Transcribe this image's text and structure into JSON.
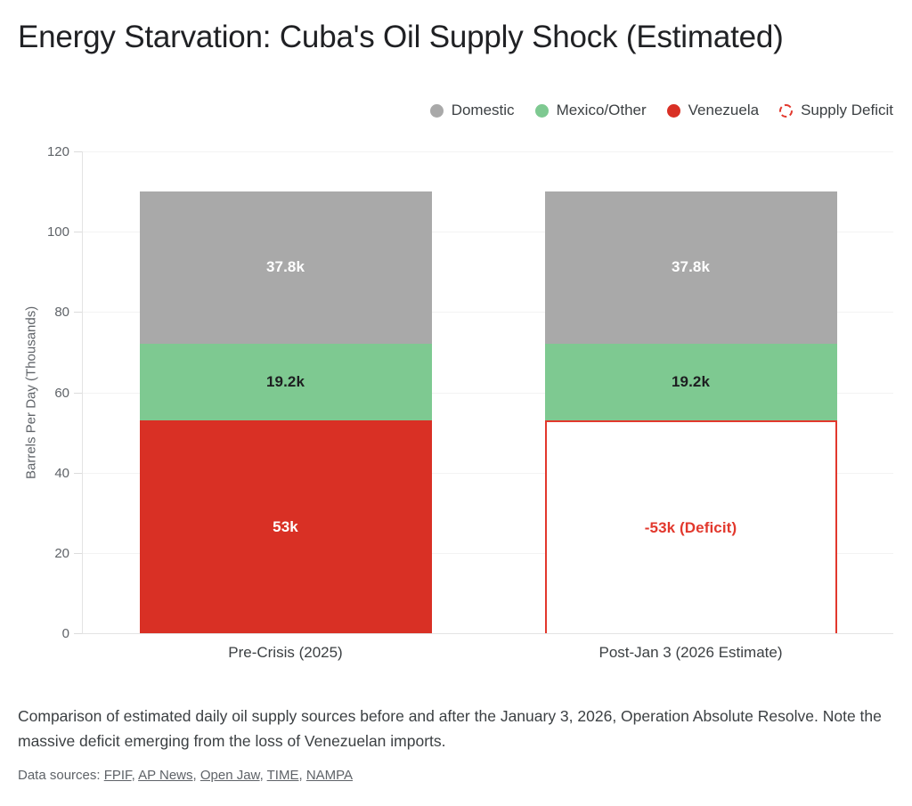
{
  "header": {
    "title": "Energy Starvation: Cuba's Oil Supply Shock (Estimated)"
  },
  "colors": {
    "domestic": "#a9a9a9",
    "mexico_other": "#7ec991",
    "venezuela": "#d93025",
    "deficit": "#e2382d",
    "grid": "#f3f3f3",
    "axis": "#e3e3e3"
  },
  "legend": {
    "items": [
      {
        "label": "Domestic",
        "color": "#a9a9a9",
        "marker": "circle"
      },
      {
        "label": "Mexico/Other",
        "color": "#7ec991",
        "marker": "circle"
      },
      {
        "label": "Venezuela",
        "color": "#d93025",
        "marker": "circle"
      },
      {
        "label": "Supply Deficit",
        "color": "#e2382d",
        "marker": "dashed-circle"
      }
    ]
  },
  "chart_data": {
    "type": "bar",
    "stacked": true,
    "title": "Energy Starvation: Cuba's Oil Supply Shock (Estimated)",
    "categories": [
      "Pre-Crisis (2025)",
      "Post-Jan 3 (2026 Estimate)"
    ],
    "xlabel": "",
    "ylabel": "Barrels Per Day (Thousands)",
    "ylim": [
      0,
      120
    ],
    "yticks": [
      0,
      20,
      40,
      60,
      80,
      100,
      120
    ],
    "grid": true,
    "legend_position": "top-right",
    "series": [
      {
        "name": "Domestic",
        "values": [
          37.8,
          37.8
        ]
      },
      {
        "name": "Mexico/Other",
        "values": [
          19.2,
          19.2
        ]
      },
      {
        "name": "Venezuela",
        "values": [
          53,
          0
        ]
      },
      {
        "name": "Supply Deficit",
        "values": [
          0,
          -53
        ]
      }
    ],
    "bars": [
      {
        "category": "Pre-Crisis (2025)",
        "segments": [
          {
            "name": "Venezuela",
            "value": 53,
            "label": "53k",
            "fill": "#d93025",
            "label_color": "#ffffff",
            "outline": false
          },
          {
            "name": "Mexico/Other",
            "value": 19.2,
            "label": "19.2k",
            "fill": "#7ec991",
            "label_color": "#1d1f21",
            "outline": false
          },
          {
            "name": "Domestic",
            "value": 37.8,
            "label": "37.8k",
            "fill": "#a9a9a9",
            "label_color": "#ffffff",
            "outline": false
          }
        ]
      },
      {
        "category": "Post-Jan 3 (2026 Estimate)",
        "segments": [
          {
            "name": "Supply Deficit",
            "value": 53,
            "label": "-53k (Deficit)",
            "fill": "#ffffff",
            "label_color": "#e2382d",
            "outline": true,
            "outline_color": "#e2382d"
          },
          {
            "name": "Mexico/Other",
            "value": 19.2,
            "label": "19.2k",
            "fill": "#7ec991",
            "label_color": "#1d1f21",
            "outline": false
          },
          {
            "name": "Domestic",
            "value": 37.8,
            "label": "37.8k",
            "fill": "#a9a9a9",
            "label_color": "#ffffff",
            "outline": false
          }
        ]
      }
    ]
  },
  "caption": {
    "text": "Comparison of estimated daily oil supply sources before and after the January 3, 2026, Operation Absolute Resolve. Note the massive deficit emerging from the loss of Venezuelan imports."
  },
  "sources": {
    "prefix": "Data sources: ",
    "separator": ", ",
    "links": [
      "FPIF",
      "AP News",
      "Open Jaw",
      "TIME",
      "NAMPA"
    ]
  }
}
